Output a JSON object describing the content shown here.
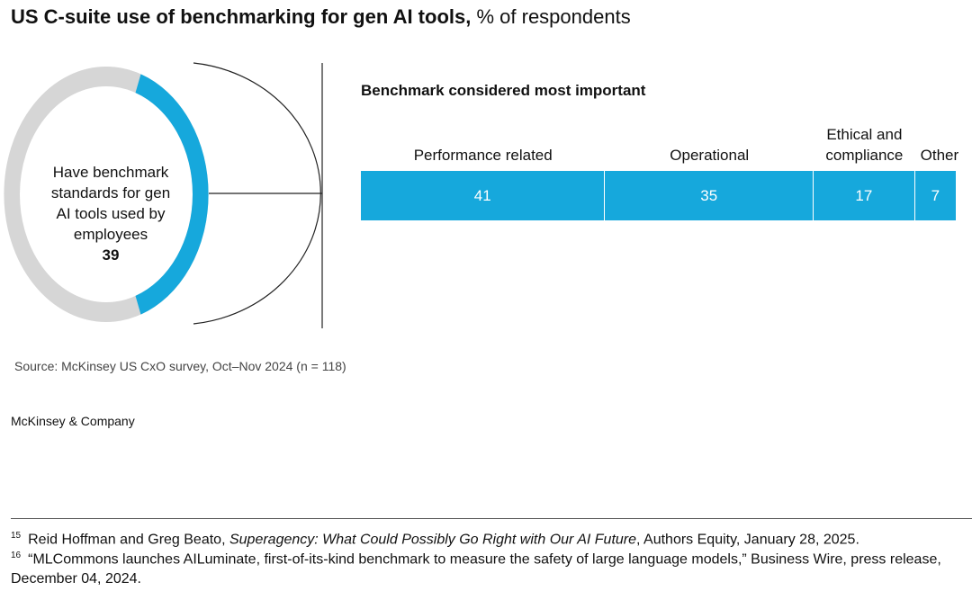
{
  "title": "US C-suite use of benchmarking for gen AI tools,",
  "subtitle": "% of respondents",
  "chart_data": [
    {
      "type": "donut",
      "label": "Have benchmark standards for gen AI tools used by employees",
      "value": 39,
      "color": "#16a8dc",
      "track_color": "#d6d6d6"
    },
    {
      "type": "stacked-bar",
      "title": "Benchmark considered most important",
      "categories": [
        "Performance related",
        "Operational",
        "Ethical and compliance",
        "Other"
      ],
      "values": [
        41,
        35,
        17,
        7
      ],
      "color": "#16a8dc"
    }
  ],
  "source": "Source: McKinsey US CxO survey, Oct–Nov 2024 (n = 118)",
  "brand": "McKinsey & Company",
  "footnotes": [
    {
      "number": "15",
      "before": "Reid Hoffman and Greg Beato,",
      "italic": "Superagency: What Could Possibly Go Right with Our AI Future",
      "after": ", Authors Equity, January 28, 2025."
    },
    {
      "number": "16",
      "before": "“MLCommons launches AILuminate, first-of-its-kind benchmark to measure the safety of large language models,” Business Wire, press release, December 04, 2024.",
      "italic": "",
      "after": ""
    }
  ]
}
